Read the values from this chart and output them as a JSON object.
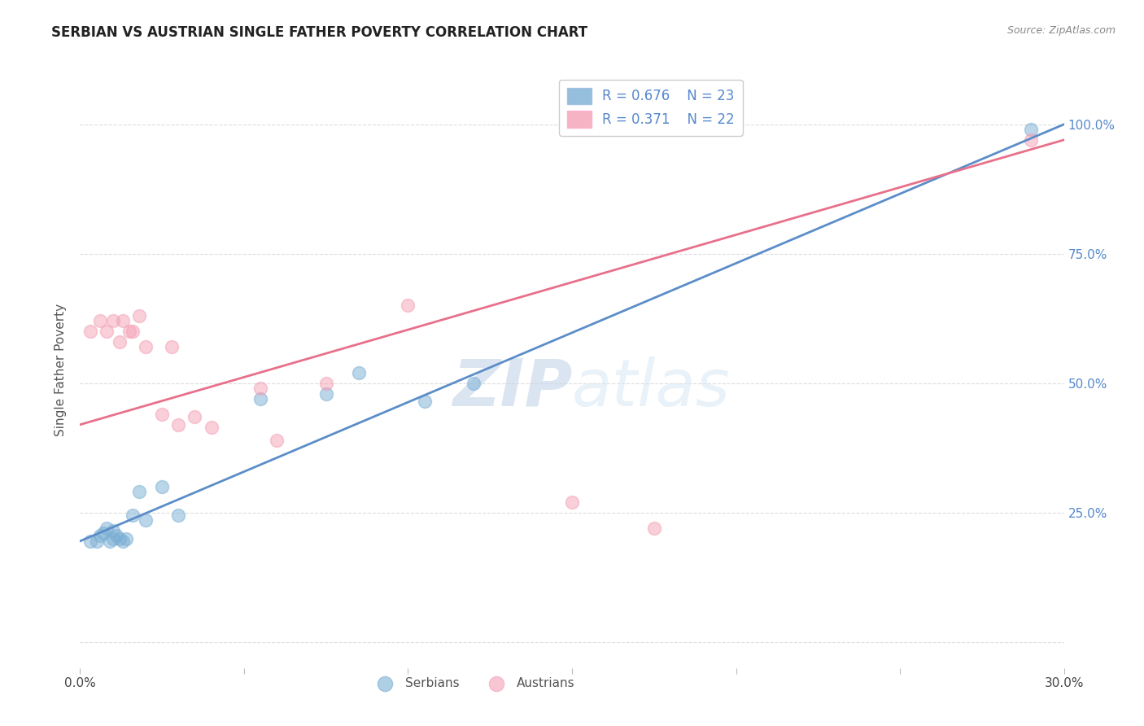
{
  "title": "SERBIAN VS AUSTRIAN SINGLE FATHER POVERTY CORRELATION CHART",
  "source": "Source: ZipAtlas.com",
  "ylabel": "Single Father Poverty",
  "ytick_labels": [
    "",
    "25.0%",
    "50.0%",
    "75.0%",
    "100.0%"
  ],
  "ytick_values": [
    0.0,
    0.25,
    0.5,
    0.75,
    1.0
  ],
  "legend_blue_R": "R = 0.676",
  "legend_blue_N": "N = 23",
  "legend_pink_R": "R = 0.371",
  "legend_pink_N": "N = 22",
  "xlim": [
    0.0,
    0.3
  ],
  "ylim": [
    -0.05,
    1.1
  ],
  "blue_color": "#7BAFD4",
  "pink_color": "#F4A0B5",
  "blue_line_color": "#5B8DC8",
  "pink_line_color": "#E8708A",
  "watermark_zip": "ZIP",
  "watermark_atlas": "atlas",
  "serbians_x": [
    0.003,
    0.005,
    0.006,
    0.007,
    0.008,
    0.009,
    0.01,
    0.01,
    0.011,
    0.012,
    0.013,
    0.014,
    0.016,
    0.018,
    0.02,
    0.025,
    0.03,
    0.055,
    0.075,
    0.085,
    0.105,
    0.12,
    0.29
  ],
  "serbians_y": [
    0.195,
    0.195,
    0.205,
    0.21,
    0.22,
    0.195,
    0.2,
    0.215,
    0.205,
    0.2,
    0.195,
    0.2,
    0.245,
    0.29,
    0.235,
    0.3,
    0.245,
    0.47,
    0.48,
    0.52,
    0.465,
    0.5,
    0.99
  ],
  "austrians_x": [
    0.003,
    0.006,
    0.008,
    0.01,
    0.012,
    0.013,
    0.015,
    0.016,
    0.018,
    0.02,
    0.025,
    0.028,
    0.03,
    0.035,
    0.04,
    0.055,
    0.06,
    0.075,
    0.1,
    0.15,
    0.175,
    0.29
  ],
  "austrians_y": [
    0.6,
    0.62,
    0.6,
    0.62,
    0.58,
    0.62,
    0.6,
    0.6,
    0.63,
    0.57,
    0.44,
    0.57,
    0.42,
    0.435,
    0.415,
    0.49,
    0.39,
    0.5,
    0.65,
    0.27,
    0.22,
    0.97
  ],
  "blue_line_x0": 0.0,
  "blue_line_y0": 0.195,
  "blue_line_x1": 0.3,
  "blue_line_y1": 1.0,
  "pink_line_x0": 0.0,
  "pink_line_y0": 0.42,
  "pink_line_x1": 0.3,
  "pink_line_y1": 0.97
}
